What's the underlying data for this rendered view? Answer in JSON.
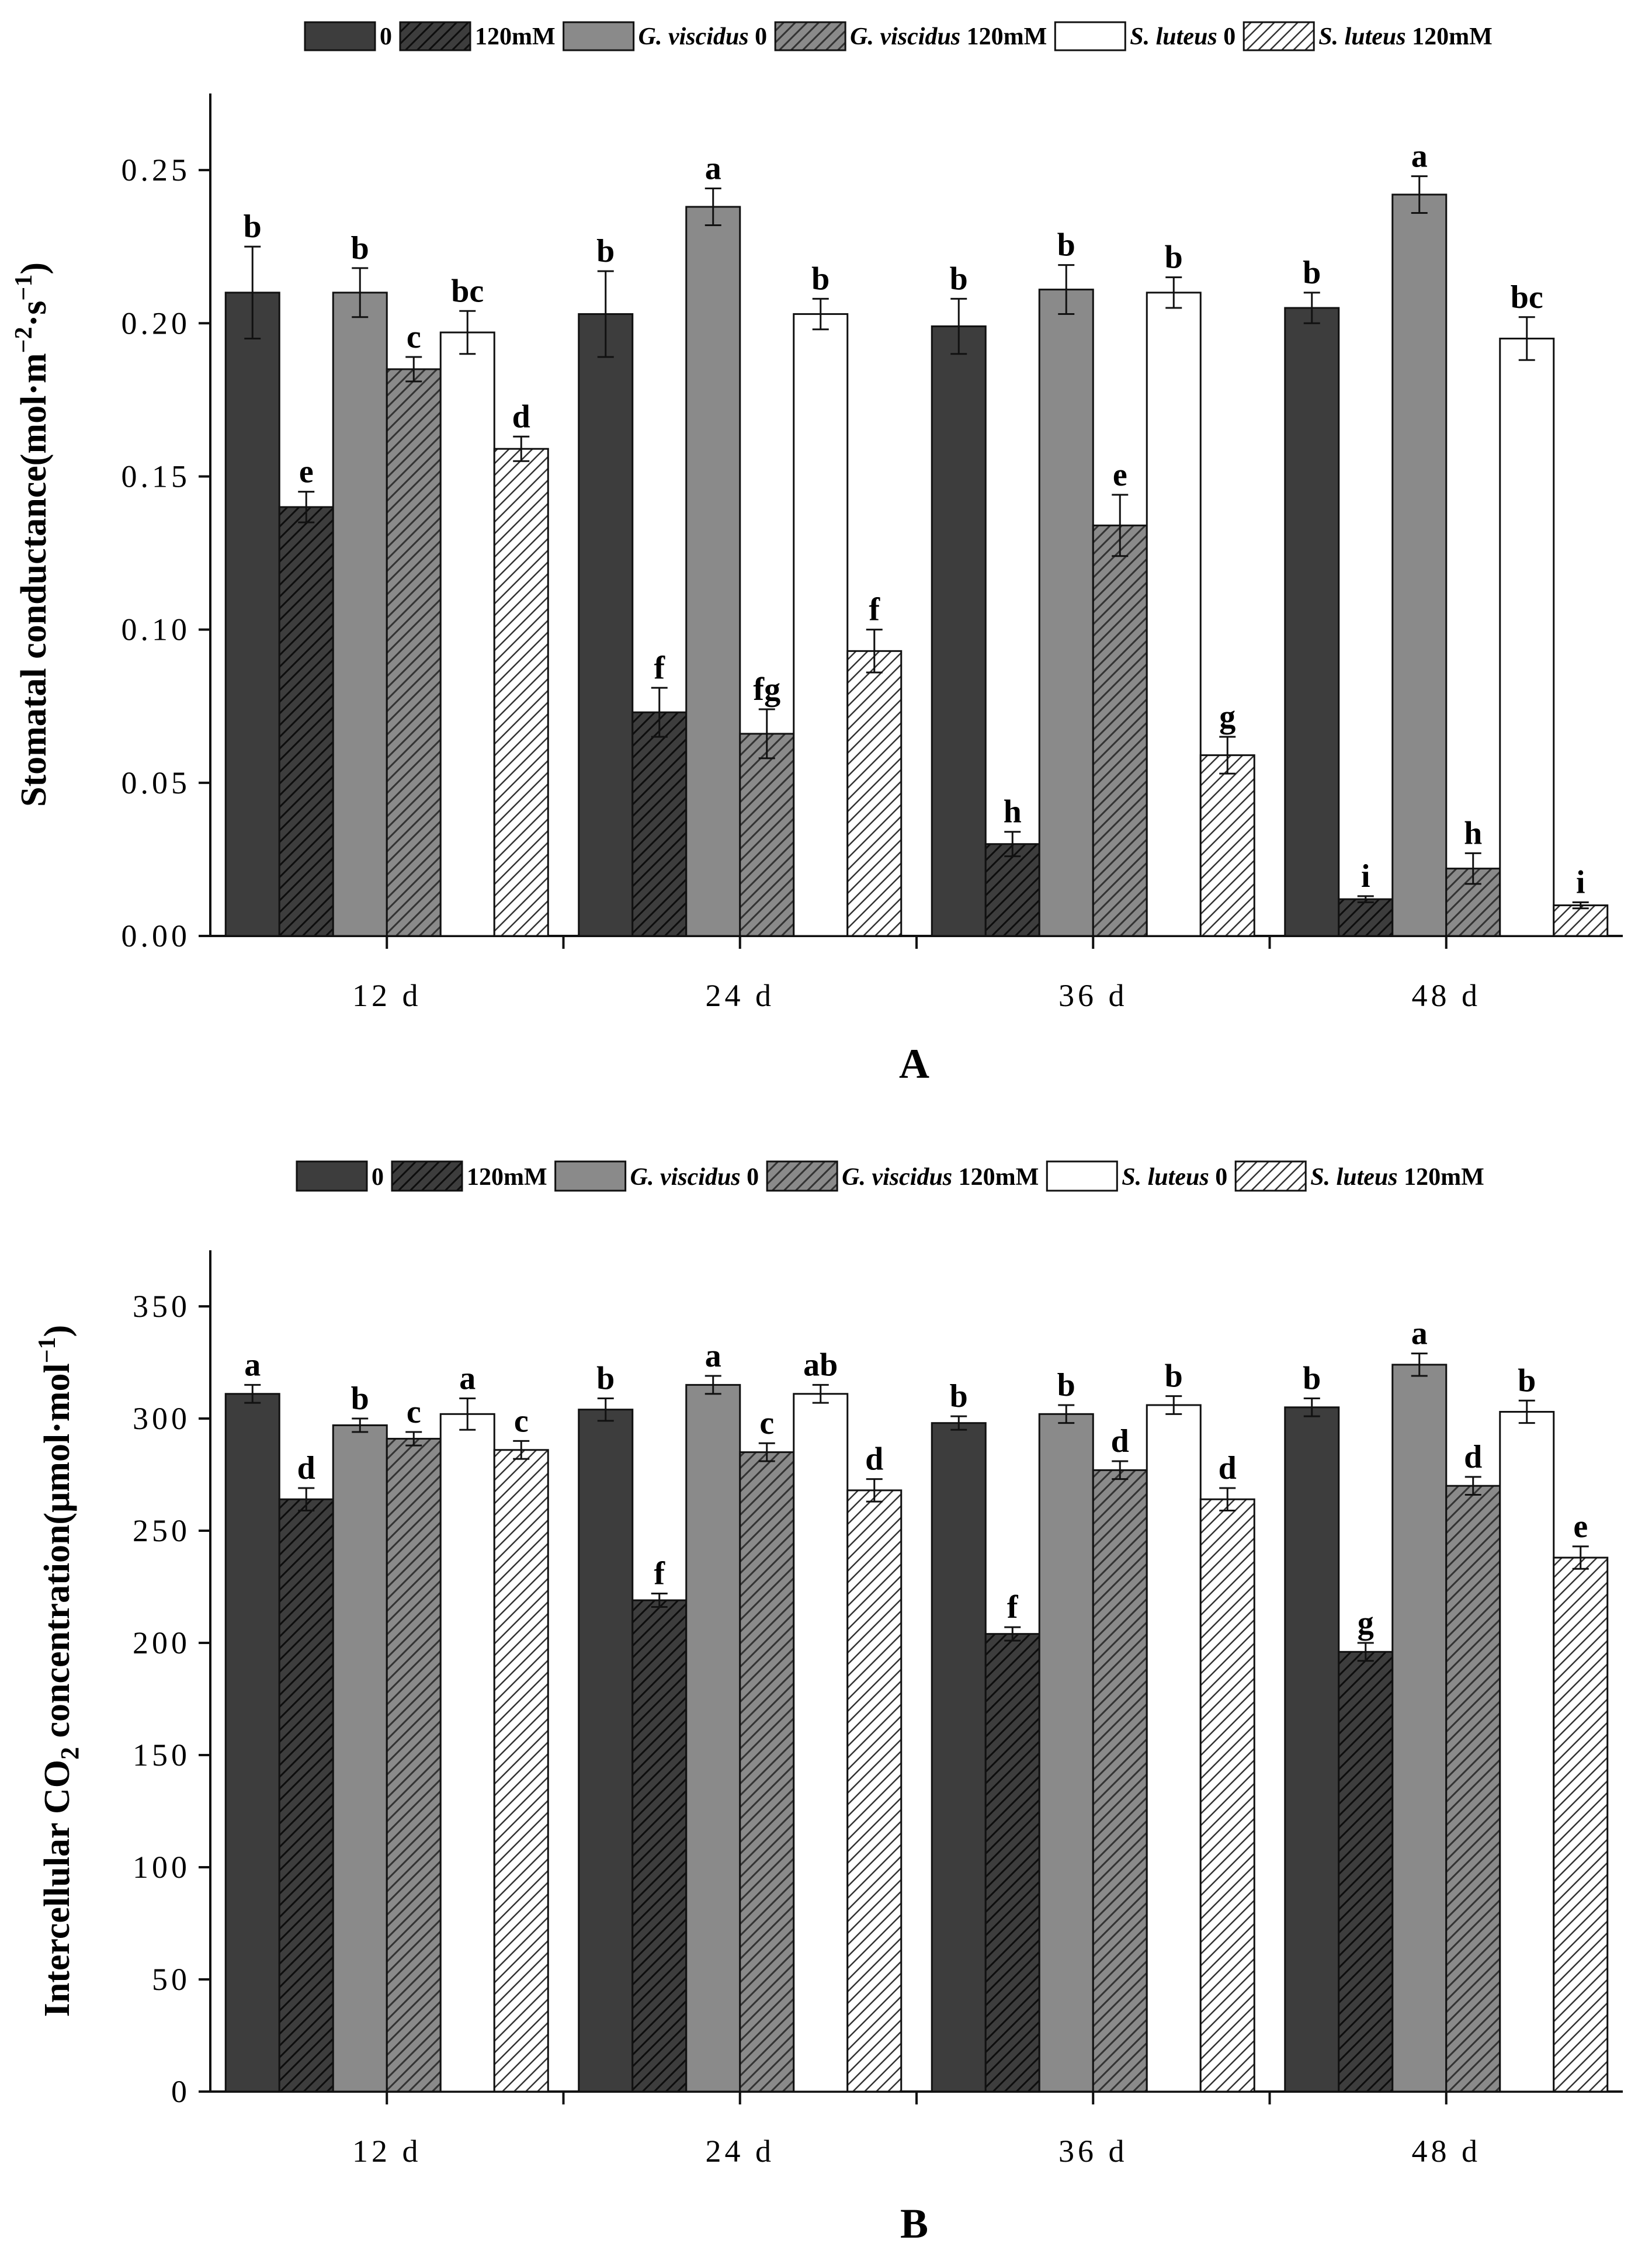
{
  "series_legend": [
    {
      "name": "0",
      "prefix": "",
      "suffix": "0",
      "fill": "#3d3d3d",
      "hatch": false
    },
    {
      "name": "120mM",
      "prefix": "",
      "suffix": "120mM",
      "fill": "#3d3d3d",
      "hatch": true
    },
    {
      "name": "G. viscidus 0",
      "prefix": "G. viscidus",
      "suffix": " 0",
      "fill": "#8a8a8a",
      "hatch": false
    },
    {
      "name": "G. viscidus 120mM",
      "prefix": "G. viscidus",
      "suffix": " 120mM",
      "fill": "#8a8a8a",
      "hatch": true
    },
    {
      "name": "S. luteus 0",
      "prefix": "S. luteus",
      "suffix": " 0",
      "fill": "#ffffff",
      "hatch": false
    },
    {
      "name": "S. luteus 120mM",
      "prefix": "S. luteus",
      "suffix": " 120mM",
      "fill": "#ffffff",
      "hatch": true
    }
  ],
  "chart_data": [
    {
      "type": "bar",
      "panel": "A",
      "title": "",
      "xlabel": "",
      "ylabel_main": "Stomatal conductance(mol·m",
      "ylabel_sup1": "−2",
      "ylabel_mid": "·s",
      "ylabel_sup2": "−1",
      "ylabel_end": ")",
      "ylim": [
        0,
        0.275
      ],
      "yticks": [
        0.0,
        0.05,
        0.1,
        0.15,
        0.2,
        0.25
      ],
      "ytick_labels": [
        "0.00",
        "0.05",
        "0.10",
        "0.15",
        "0.20",
        "0.25"
      ],
      "categories": [
        "12 d",
        "24 d",
        "36 d",
        "48 d"
      ],
      "series": [
        {
          "name": "0",
          "values": [
            0.21,
            0.203,
            0.199,
            0.205
          ],
          "errors": [
            0.015,
            0.014,
            0.009,
            0.005
          ],
          "letters": [
            "b",
            "b",
            "b",
            "b"
          ]
        },
        {
          "name": "120mM",
          "values": [
            0.14,
            0.073,
            0.03,
            0.012
          ],
          "errors": [
            0.005,
            0.008,
            0.004,
            0.001
          ],
          "letters": [
            "e",
            "f",
            "h",
            "i"
          ]
        },
        {
          "name": "G. viscidus 0",
          "values": [
            0.21,
            0.238,
            0.211,
            0.242
          ],
          "errors": [
            0.008,
            0.006,
            0.008,
            0.006
          ],
          "letters": [
            "b",
            "a",
            "b",
            "a"
          ]
        },
        {
          "name": "G. viscidus 120mM",
          "values": [
            0.185,
            0.066,
            0.134,
            0.022
          ],
          "errors": [
            0.004,
            0.008,
            0.01,
            0.005
          ],
          "letters": [
            "c",
            "fg",
            "e",
            "h"
          ]
        },
        {
          "name": "S. luteus 0",
          "values": [
            0.197,
            0.203,
            0.21,
            0.195
          ],
          "errors": [
            0.007,
            0.005,
            0.005,
            0.007
          ],
          "letters": [
            "bc",
            "b",
            "b",
            "bc"
          ]
        },
        {
          "name": "S. luteus 120mM",
          "values": [
            0.159,
            0.093,
            0.059,
            0.01
          ],
          "errors": [
            0.004,
            0.007,
            0.006,
            0.001
          ],
          "letters": [
            "d",
            "f",
            "g",
            "i"
          ]
        }
      ]
    },
    {
      "type": "bar",
      "panel": "B",
      "title": "",
      "xlabel": "",
      "ylabel_main": "Intercellular CO",
      "ylabel_sub": "2",
      "ylabel_rest": " concentration(μmol·mol",
      "ylabel_sup": "−1",
      "ylabel_end": ")",
      "ylim": [
        0,
        375
      ],
      "yticks": [
        0,
        50,
        100,
        150,
        200,
        250,
        300,
        350
      ],
      "ytick_labels": [
        "0",
        "50",
        "100",
        "150",
        "200",
        "250",
        "300",
        "350"
      ],
      "categories": [
        "12 d",
        "24 d",
        "36 d",
        "48 d"
      ],
      "series": [
        {
          "name": "0",
          "values": [
            311,
            304,
            298,
            305
          ],
          "errors": [
            4,
            5,
            3,
            4
          ],
          "letters": [
            "a",
            "b",
            "b",
            "b"
          ]
        },
        {
          "name": "120mM",
          "values": [
            264,
            219,
            204,
            196
          ],
          "errors": [
            5,
            3,
            3,
            4
          ],
          "letters": [
            "d",
            "f",
            "f",
            "g"
          ]
        },
        {
          "name": "G. viscidus 0",
          "values": [
            297,
            315,
            302,
            324
          ],
          "errors": [
            3,
            4,
            4,
            5
          ],
          "letters": [
            "b",
            "a",
            "b",
            "a"
          ]
        },
        {
          "name": "G. viscidus 120mM",
          "values": [
            291,
            285,
            277,
            270
          ],
          "errors": [
            3,
            4,
            4,
            4
          ],
          "letters": [
            "c",
            "c",
            "d",
            "d"
          ]
        },
        {
          "name": "S. luteus 0",
          "values": [
            302,
            311,
            306,
            303
          ],
          "errors": [
            7,
            4,
            4,
            5
          ],
          "letters": [
            "a",
            "ab",
            "b",
            "b"
          ]
        },
        {
          "name": "S. luteus 120mM",
          "values": [
            286,
            268,
            264,
            238
          ],
          "errors": [
            4,
            5,
            5,
            5
          ],
          "letters": [
            "c",
            "d",
            "d",
            "e"
          ]
        }
      ]
    }
  ]
}
